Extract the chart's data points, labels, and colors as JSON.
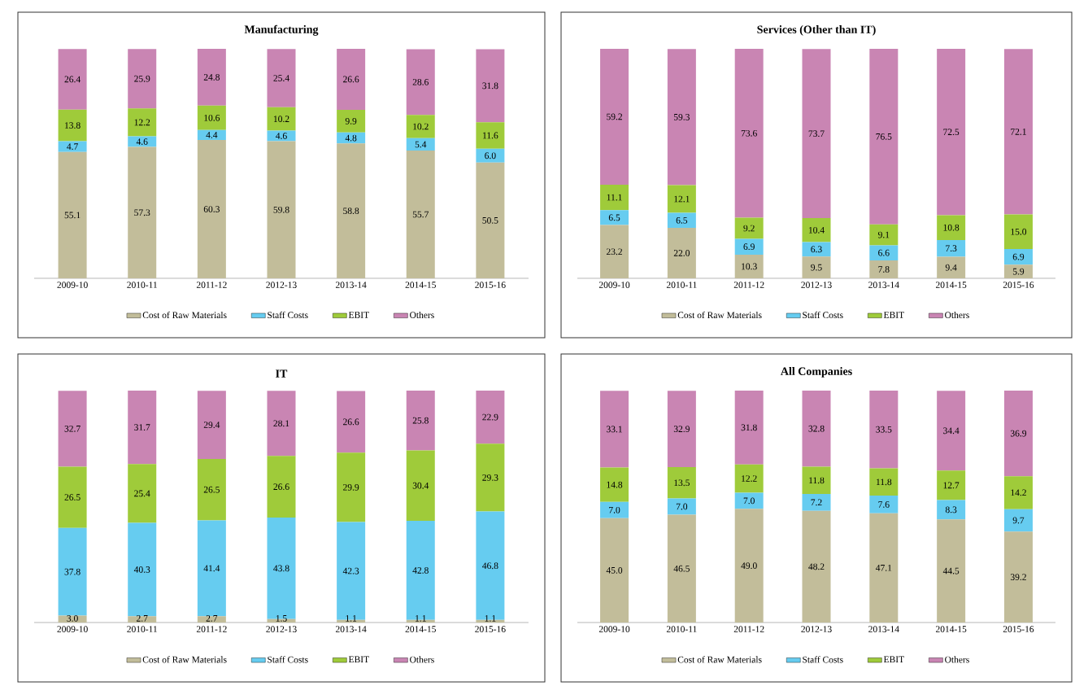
{
  "chart_data": [
    {
      "type": "bar",
      "title": "Manufacturing",
      "categories": [
        "2009-10",
        "2010-11",
        "2011-12",
        "2012-13",
        "2013-14",
        "2014-15",
        "2015-16"
      ],
      "stacked": true,
      "legend": "bottom",
      "series": [
        {
          "name": "Cost of Raw Materials",
          "color": "#c2bd9a",
          "values": [
            55.1,
            57.3,
            60.3,
            59.8,
            58.8,
            55.7,
            50.5
          ],
          "value_labels": [
            "55.1",
            "57.3",
            "60.3",
            "59.8",
            "58.8",
            "55.7",
            "50.5"
          ]
        },
        {
          "name": "Staff Costs",
          "color": "#66ccf0",
          "values": [
            4.7,
            4.6,
            4.4,
            4.6,
            4.8,
            5.4,
            6.0
          ],
          "value_labels": [
            "4.7",
            "4.6",
            "4.4",
            "4.6",
            "4.8",
            "5.4",
            "6.0"
          ]
        },
        {
          "name": "EBIT",
          "color": "#9fcb3a",
          "values": [
            13.8,
            12.2,
            10.6,
            10.2,
            9.9,
            10.2,
            11.6
          ],
          "value_labels": [
            "13.8",
            "12.2",
            "10.6",
            "10.2",
            "9.9",
            "10.2",
            "11.6"
          ]
        },
        {
          "name": "Others",
          "color": "#c985b3",
          "values": [
            26.4,
            25.9,
            24.8,
            25.4,
            26.6,
            28.6,
            31.8
          ],
          "value_labels": [
            "26.4",
            "25.9",
            "24.8",
            "25.4",
            "26.6",
            "28.6",
            "31.8"
          ]
        }
      ]
    },
    {
      "type": "bar",
      "title": "Services (Other than IT)",
      "categories": [
        "2009-10",
        "2010-11",
        "2011-12",
        "2012-13",
        "2013-14",
        "2014-15",
        "2015-16"
      ],
      "stacked": true,
      "legend": "bottom",
      "series": [
        {
          "name": "Cost of Raw Materials",
          "color": "#c2bd9a",
          "values": [
            23.2,
            22.0,
            10.3,
            9.5,
            7.8,
            9.4,
            5.9
          ],
          "value_labels": [
            "23.2",
            "22.0",
            "10.3",
            "9.5",
            "7.8",
            "9.4",
            "5.9"
          ]
        },
        {
          "name": "Staff Costs",
          "color": "#66ccf0",
          "values": [
            6.5,
            6.5,
            6.9,
            6.3,
            6.6,
            7.3,
            6.9
          ],
          "value_labels": [
            "6.5",
            "6.5",
            "6.9",
            "6.3",
            "6.6",
            "7.3",
            "6.9"
          ]
        },
        {
          "name": "EBIT",
          "color": "#9fcb3a",
          "values": [
            11.1,
            12.1,
            9.2,
            10.4,
            9.1,
            10.8,
            15.0
          ],
          "value_labels": [
            "11.1",
            "12.1",
            "9.2",
            "10.4",
            "9.1",
            "10.8",
            "15.0"
          ]
        },
        {
          "name": "Others",
          "color": "#c985b3",
          "values": [
            59.2,
            59.3,
            73.6,
            73.7,
            76.5,
            72.5,
            72.1
          ],
          "value_labels": [
            "59.2",
            "59.3",
            "73.6",
            "73.7",
            "76.5",
            "72.5",
            "72.1"
          ]
        }
      ]
    },
    {
      "type": "bar",
      "title": "IT",
      "categories": [
        "2009-10",
        "2010-11",
        "2011-12",
        "2012-13",
        "2013-14",
        "2014-15",
        "2015-16"
      ],
      "stacked": true,
      "legend": "bottom",
      "series": [
        {
          "name": "Cost of Raw Materials",
          "color": "#c2bd9a",
          "values": [
            3.0,
            2.7,
            2.7,
            1.5,
            1.1,
            1.1,
            1.1
          ],
          "value_labels": [
            "3.0",
            "2.7",
            "2.7",
            "1.5",
            "1.1",
            "1.1",
            "1.1"
          ]
        },
        {
          "name": "Staff Costs",
          "color": "#66ccf0",
          "values": [
            37.8,
            40.3,
            41.4,
            43.8,
            42.3,
            42.8,
            46.8
          ],
          "value_labels": [
            "37.8",
            "40.3",
            "41.4",
            "43.8",
            "42.3",
            "42.8",
            "46.8"
          ]
        },
        {
          "name": "EBIT",
          "color": "#9fcb3a",
          "values": [
            26.5,
            25.4,
            26.5,
            26.6,
            29.9,
            30.4,
            29.3
          ],
          "value_labels": [
            "26.5",
            "25.4",
            "26.5",
            "26.6",
            "29.9",
            "30.4",
            "29.3"
          ]
        },
        {
          "name": "Others",
          "color": "#c985b3",
          "values": [
            32.7,
            31.7,
            29.4,
            28.1,
            26.6,
            25.8,
            22.9
          ],
          "value_labels": [
            "32.7",
            "31.7",
            "29.4",
            "28.1",
            "26.6",
            "25.8",
            "22.9"
          ]
        }
      ]
    },
    {
      "type": "bar",
      "title": "All Companies",
      "categories": [
        "2009-10",
        "2010-11",
        "2011-12",
        "2012-13",
        "2013-14",
        "2014-15",
        "2015-16"
      ],
      "stacked": true,
      "legend": "bottom",
      "series": [
        {
          "name": "Cost of Raw Materials",
          "color": "#c2bd9a",
          "values": [
            45.0,
            46.5,
            49.0,
            48.2,
            47.1,
            44.5,
            39.2
          ],
          "value_labels": [
            "45.0",
            "46.5",
            "49.0",
            "48.2",
            "47.1",
            "44.5",
            "39.2"
          ]
        },
        {
          "name": "Staff Costs",
          "color": "#66ccf0",
          "values": [
            7.0,
            7.0,
            7.0,
            7.2,
            7.6,
            8.3,
            9.7
          ],
          "value_labels": [
            "7.0",
            "7.0",
            "7.0",
            "7.2",
            "7.6",
            "8.3",
            "9.7"
          ]
        },
        {
          "name": "EBIT",
          "color": "#9fcb3a",
          "values": [
            14.8,
            13.5,
            12.2,
            11.8,
            11.8,
            12.7,
            14.2
          ],
          "value_labels": [
            "14.8",
            "13.5",
            "12.2",
            "11.8",
            "11.8",
            "12.7",
            "14.2"
          ]
        },
        {
          "name": "Others",
          "color": "#c985b3",
          "values": [
            33.1,
            32.9,
            31.8,
            32.8,
            33.5,
            34.4,
            36.9
          ],
          "value_labels": [
            "33.1",
            "32.9",
            "31.8",
            "32.8",
            "33.5",
            "34.4",
            "36.9"
          ]
        }
      ]
    }
  ]
}
